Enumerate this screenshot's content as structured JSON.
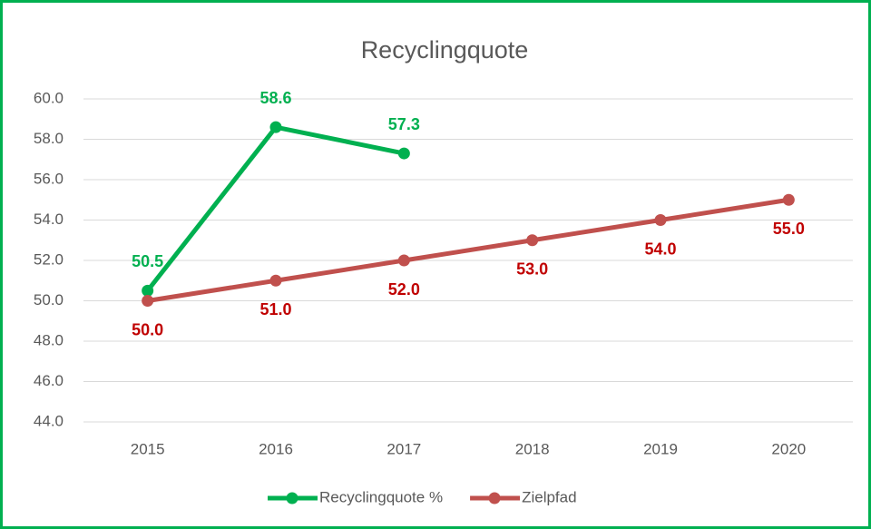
{
  "chart_data": {
    "type": "line",
    "title": "Recyclingquote",
    "categories": [
      "2015",
      "2016",
      "2017",
      "2018",
      "2019",
      "2020"
    ],
    "series": [
      {
        "name": "Recyclingquote %",
        "color": "#00b050",
        "label_color": "#00b050",
        "values": [
          50.5,
          58.6,
          57.3,
          null,
          null,
          null
        ],
        "value_labels": [
          "50.5",
          "58.6",
          "57.3",
          null,
          null,
          null
        ]
      },
      {
        "name": "Zielpfad",
        "color": "#c0504d",
        "label_color": "#c00000",
        "values": [
          50,
          51,
          52,
          53,
          54,
          55
        ],
        "value_labels": [
          "50.0",
          "51.0",
          "52.0",
          "53.0",
          "54.0",
          "55.0"
        ]
      }
    ],
    "ylim": [
      44,
      60
    ],
    "yticks": [
      {
        "value": 44,
        "label": "44.0"
      },
      {
        "value": 46,
        "label": "46.0"
      },
      {
        "value": 48,
        "label": "48.0"
      },
      {
        "value": 50,
        "label": "50.0"
      },
      {
        "value": 52,
        "label": "52.0"
      },
      {
        "value": 54,
        "label": "54.0"
      },
      {
        "value": 56,
        "label": "56.0"
      },
      {
        "value": 58,
        "label": "58.0"
      },
      {
        "value": 60,
        "label": "60.0"
      }
    ],
    "grid": true,
    "legend": "bottom"
  }
}
